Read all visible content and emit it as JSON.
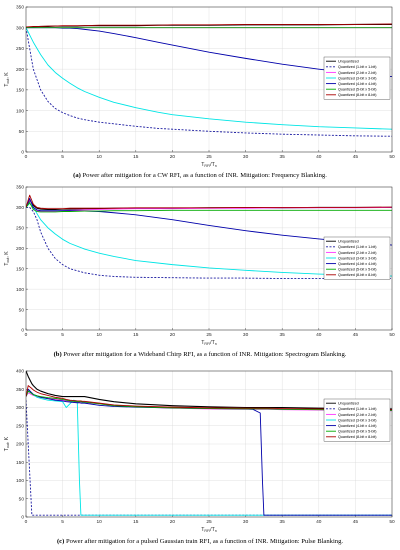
{
  "chart_data": [
    {
      "type": "line",
      "caption_label": "(a)",
      "caption_text": "Power after mitigation for a CW RFI, as a function of INR. Mitigation: Frequency Blanking.",
      "ylabel": "T_out, K",
      "xlabel": "T_RFI/T_n",
      "xlim": [
        0,
        50
      ],
      "ylim": [
        0,
        350
      ],
      "xticks": [
        "0",
        "5",
        "10",
        "15",
        "20",
        "25",
        "30",
        "35",
        "40",
        "45",
        "50"
      ],
      "yticks": [
        "0",
        "50",
        "100",
        "150",
        "200",
        "250",
        "300",
        "350"
      ],
      "grid": true,
      "legend_position": "right",
      "x": [
        0,
        1,
        2,
        3,
        4,
        5,
        6,
        7,
        8,
        10,
        12,
        15,
        18,
        20,
        25,
        30,
        35,
        40,
        45,
        50
      ],
      "series": [
        {
          "name": "Unquantized",
          "color": "#000000",
          "dash": "",
          "values": [
            301,
            302,
            303,
            303,
            304,
            304,
            304,
            304,
            305,
            305,
            305,
            305,
            306,
            306,
            306,
            307,
            307,
            307,
            308,
            308
          ]
        },
        {
          "name": "Quantized (1-bit x 1-bit)",
          "color": "#1a1aa0",
          "dash": "2,1.5",
          "values": [
            300,
            200,
            150,
            122,
            105,
            95,
            88,
            82,
            78,
            72,
            68,
            62,
            57,
            55,
            50,
            46,
            43,
            41,
            39,
            38
          ]
        },
        {
          "name": "Quantized (2-bit x 2-bit)",
          "color": "#ff33ff",
          "dash": "",
          "values": [
            300,
            300,
            300,
            300,
            300,
            300,
            300,
            300,
            300,
            300,
            300,
            300,
            300,
            300,
            300,
            300,
            300,
            300,
            300,
            300
          ]
        },
        {
          "name": "Quantized (3-bit x 3-bit)",
          "color": "#00e5e5",
          "dash": "",
          "values": [
            300,
            265,
            235,
            210,
            192,
            178,
            166,
            155,
            146,
            132,
            120,
            107,
            96,
            90,
            80,
            72,
            66,
            61,
            58,
            55
          ]
        },
        {
          "name": "Quantized (4-bit x 4-bit)",
          "color": "#0000aa",
          "dash": "",
          "values": [
            300,
            300,
            300,
            300,
            300,
            299,
            299,
            298,
            296,
            292,
            286,
            276,
            265,
            258,
            241,
            226,
            212,
            200,
            190,
            182
          ]
        },
        {
          "name": "Quantized (5-bit x 5-bit)",
          "color": "#00aa00",
          "dash": "",
          "values": [
            300,
            300,
            300,
            300,
            300,
            300,
            300,
            300,
            300,
            300,
            300,
            300,
            300,
            300,
            300,
            300,
            300,
            300,
            300,
            300
          ]
        },
        {
          "name": "Quantized (8-bit x 8-bit)",
          "color": "#aa0000",
          "dash": "",
          "values": [
            302,
            303,
            303,
            304,
            304,
            305,
            305,
            305,
            305,
            306,
            306,
            306,
            306,
            307,
            307,
            308,
            308,
            308,
            308,
            309
          ]
        }
      ]
    },
    {
      "type": "line",
      "caption_label": "(b)",
      "caption_text": "Power after mitigation for a Wideband Chirp RFI, as a function of INR. Mitigation: Spectrogram Blanking.",
      "ylabel": "T_out, K",
      "xlabel": "T_RFI/T_n",
      "xlim": [
        0,
        50
      ],
      "ylim": [
        0,
        350
      ],
      "xticks": [
        "0",
        "5",
        "10",
        "15",
        "20",
        "25",
        "30",
        "35",
        "40",
        "45",
        "50"
      ],
      "yticks": [
        "0",
        "50",
        "100",
        "150",
        "200",
        "250",
        "300",
        "350"
      ],
      "grid": true,
      "legend_position": "right",
      "x": [
        0,
        0.5,
        1,
        1.5,
        2,
        3,
        4,
        5,
        6,
        8,
        10,
        12,
        15,
        20,
        25,
        30,
        35,
        40,
        45,
        50
      ],
      "series": [
        {
          "name": "Unquantized",
          "color": "#000000",
          "dash": "",
          "values": [
            300,
            318,
            305,
            298,
            296,
            295,
            295,
            296,
            296,
            297,
            297,
            298,
            298,
            298,
            299,
            299,
            299,
            300,
            300,
            300
          ]
        },
        {
          "name": "Quantized (1-bit x 1-bit)",
          "color": "#1a1aa0",
          "dash": "2,1.5",
          "values": [
            300,
            300,
            290,
            270,
            240,
            200,
            175,
            160,
            150,
            140,
            134,
            131,
            129,
            128,
            127,
            127,
            126,
            126,
            126,
            126
          ]
        },
        {
          "name": "Quantized (2-bit x 2-bit)",
          "color": "#ff33ff",
          "dash": "",
          "values": [
            300,
            320,
            300,
            292,
            290,
            290,
            291,
            292,
            293,
            294,
            295,
            296,
            297,
            297,
            298,
            298,
            299,
            299,
            299,
            300
          ]
        },
        {
          "name": "Quantized (3-bit x 3-bit)",
          "color": "#00e5e5",
          "dash": "",
          "values": [
            300,
            310,
            300,
            285,
            270,
            250,
            235,
            222,
            212,
            198,
            188,
            180,
            170,
            160,
            152,
            146,
            141,
            137,
            134,
            132
          ]
        },
        {
          "name": "Quantized (4-bit x 4-bit)",
          "color": "#0000aa",
          "dash": "",
          "values": [
            300,
            322,
            300,
            294,
            292,
            292,
            292,
            292,
            292,
            291,
            290,
            287,
            282,
            270,
            256,
            243,
            232,
            223,
            215,
            208
          ]
        },
        {
          "name": "Quantized (5-bit x 5-bit)",
          "color": "#00aa00",
          "dash": "",
          "values": [
            300,
            312,
            295,
            290,
            289,
            289,
            289,
            290,
            290,
            291,
            291,
            292,
            292,
            293,
            293,
            293,
            293,
            293,
            293,
            293
          ]
        },
        {
          "name": "Quantized (8-bit x 8-bit)",
          "color": "#aa0000",
          "dash": "",
          "values": [
            300,
            330,
            308,
            300,
            298,
            297,
            297,
            297,
            298,
            298,
            298,
            298,
            299,
            299,
            299,
            300,
            300,
            300,
            300,
            301
          ]
        }
      ]
    },
    {
      "type": "line",
      "caption_label": "(c)",
      "caption_text": "Power after mitigation for a pulsed Gaussian train RFI, as a function of INR. Mitigation: Pulse Blanking.",
      "ylabel": "T_out, K",
      "xlabel": "T_RFI/T_n",
      "xlim": [
        0,
        50
      ],
      "ylim": [
        0,
        400
      ],
      "xticks": [
        "0",
        "5",
        "10",
        "15",
        "20",
        "25",
        "30",
        "35",
        "40",
        "45",
        "50"
      ],
      "yticks": [
        "0",
        "50",
        "100",
        "150",
        "200",
        "250",
        "300",
        "350",
        "400"
      ],
      "grid": true,
      "legend_position": "right",
      "x": [
        0,
        0.3,
        0.8,
        1,
        1.5,
        2,
        3,
        4,
        5,
        5.5,
        6,
        6.5,
        7,
        7.3,
        7.5,
        7.7,
        8,
        10,
        12,
        15,
        20,
        25,
        30,
        31,
        32,
        32.3,
        32.5,
        33,
        35,
        40,
        45,
        50
      ],
      "series": [
        {
          "name": "Unquantized",
          "color": "#000000",
          "dash": "",
          "values": [
            400,
            385,
            365,
            360,
            350,
            345,
            338,
            333,
            330,
            330,
            330,
            330,
            330,
            330,
            330,
            330,
            330,
            322,
            316,
            310,
            305,
            302,
            300,
            300,
            300,
            300,
            300,
            300,
            300,
            298,
            297,
            296
          ]
        },
        {
          "name": "Quantized (1-bit x 1-bit)",
          "color": "#1a1aa0",
          "dash": "2,1.5",
          "values": [
            320,
            200,
            5,
            5,
            5,
            5,
            5,
            5,
            5,
            5,
            5,
            5,
            5,
            5,
            5,
            5,
            5,
            5,
            5,
            5,
            5,
            5,
            5,
            5,
            5,
            5,
            5,
            5,
            5,
            5,
            5,
            5
          ]
        },
        {
          "name": "Quantized (2-bit x 2-bit)",
          "color": "#ff33ff",
          "dash": "",
          "values": [
            330,
            340,
            335,
            333,
            330,
            328,
            325,
            322,
            320,
            318,
            316,
            316,
            315,
            315,
            315,
            315,
            314,
            310,
            305,
            302,
            298,
            296,
            295,
            295,
            295,
            295,
            295,
            295,
            294,
            293,
            292,
            291
          ]
        },
        {
          "name": "Quantized (3-bit x 3-bit)",
          "color": "#00e5e5",
          "dash": "",
          "values": [
            330,
            345,
            340,
            335,
            328,
            325,
            320,
            318,
            316,
            300,
            310,
            320,
            318,
            100,
            5,
            5,
            5,
            5,
            5,
            5,
            5,
            5,
            5,
            5,
            5,
            5,
            5,
            5,
            5,
            5,
            5,
            5
          ]
        },
        {
          "name": "Quantized (4-bit x 4-bit)",
          "color": "#0000aa",
          "dash": "",
          "values": [
            330,
            350,
            340,
            336,
            332,
            328,
            324,
            320,
            318,
            316,
            315,
            314,
            313,
            313,
            312,
            312,
            312,
            306,
            303,
            301,
            299,
            297,
            296,
            295,
            285,
            100,
            5,
            5,
            5,
            5,
            5,
            5
          ]
        },
        {
          "name": "Quantized (5-bit x 5-bit)",
          "color": "#00aa00",
          "dash": "",
          "values": [
            330,
            345,
            338,
            335,
            332,
            330,
            327,
            325,
            322,
            320,
            318,
            317,
            316,
            316,
            316,
            315,
            315,
            310,
            305,
            302,
            299,
            297,
            296,
            296,
            296,
            296,
            296,
            296,
            295,
            294,
            293,
            292
          ]
        },
        {
          "name": "Quantized (8-bit x 8-bit)",
          "color": "#aa0000",
          "dash": "",
          "values": [
            330,
            360,
            352,
            348,
            342,
            338,
            333,
            328,
            325,
            322,
            320,
            319,
            318,
            318,
            318,
            317,
            317,
            312,
            307,
            304,
            301,
            299,
            298,
            298,
            298,
            298,
            298,
            298,
            297,
            296,
            295,
            294
          ]
        }
      ]
    }
  ]
}
